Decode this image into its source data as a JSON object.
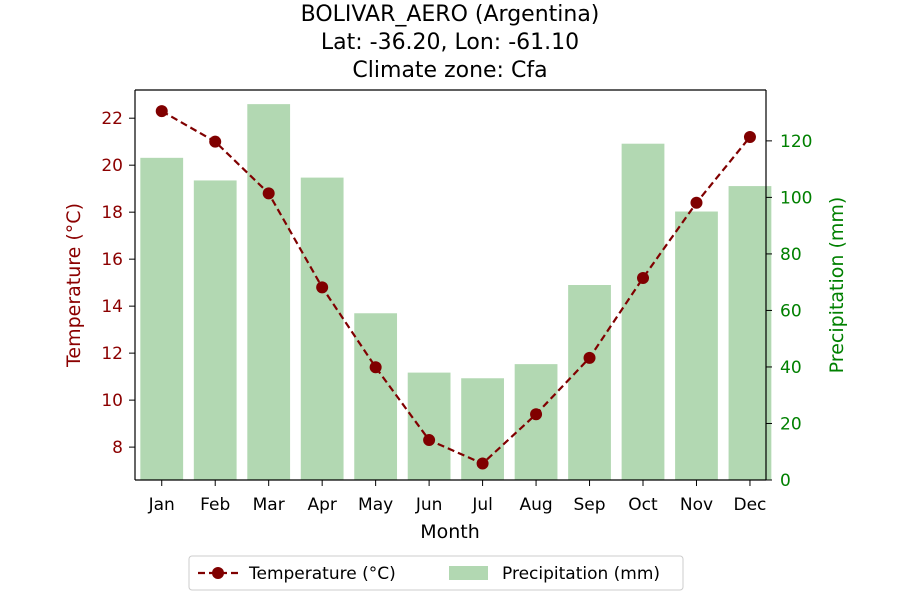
{
  "chart_data": {
    "type": "bar+line",
    "title_lines": [
      "BOLIVAR_AERO (Argentina)",
      "Lat: -36.20, Lon: -61.10",
      "Climate zone: Cfa"
    ],
    "xlabel": "Month",
    "ylabel_left": "Temperature (°C)",
    "ylabel_right": "Precipitation (mm)",
    "categories": [
      "Jan",
      "Feb",
      "Mar",
      "Apr",
      "May",
      "Jun",
      "Jul",
      "Aug",
      "Sep",
      "Oct",
      "Nov",
      "Dec"
    ],
    "ylim_left": [
      6.6,
      23.2
    ],
    "yticks_left": [
      8,
      10,
      12,
      14,
      16,
      18,
      20,
      22
    ],
    "ylim_right": [
      0,
      138
    ],
    "yticks_right": [
      0,
      20,
      40,
      60,
      80,
      100,
      120
    ],
    "series": [
      {
        "name": "Temperature (°C)",
        "kind": "line",
        "axis": "left",
        "color": "#800000",
        "values": [
          22.3,
          21.0,
          18.8,
          14.8,
          11.4,
          8.3,
          7.3,
          9.4,
          11.8,
          15.2,
          18.4,
          21.2
        ]
      },
      {
        "name": "Precipitation (mm)",
        "kind": "bar",
        "axis": "right",
        "color": "#b2d8b2",
        "values": [
          114,
          106,
          133,
          107,
          59,
          38,
          36,
          41,
          69,
          119,
          95,
          104
        ]
      }
    ],
    "legend_position": "bottom-center",
    "left_axis_color": "#8b0000",
    "right_axis_color": "#008000",
    "grid": false
  }
}
